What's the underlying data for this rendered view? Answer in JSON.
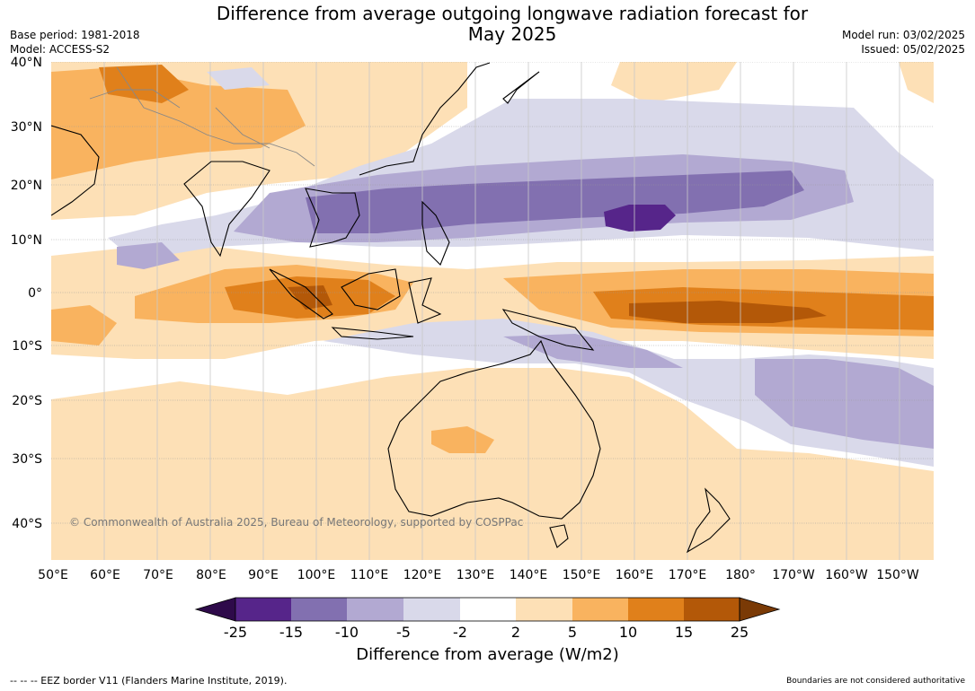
{
  "header": {
    "title_line1": "Difference from average outgoing longwave radiation forecast for",
    "title_line2": "May 2025",
    "base_period": "Base period: 1981-2018",
    "model": "Model: ACCESS-S2",
    "model_run": "Model run: 03/02/2025",
    "issued": "Issued: 05/02/2025"
  },
  "map": {
    "lat_labels": [
      "40°N",
      "30°N",
      "20°N",
      "10°N",
      "0°",
      "10°S",
      "20°S",
      "30°S",
      "40°S"
    ],
    "lon_labels": [
      "50°E",
      "60°E",
      "70°E",
      "80°E",
      "90°E",
      "100°E",
      "110°E",
      "120°E",
      "130°E",
      "140°E",
      "150°E",
      "160°E",
      "170°E",
      "180°",
      "170°W",
      "160°W",
      "150°W"
    ],
    "copyright": "© Commonwealth of Australia 2025, Bureau of Meteorology, supported by COSPPac"
  },
  "colorbar": {
    "ticks": [
      "-25",
      "-15",
      "-10",
      "-5",
      "-2",
      "2",
      "5",
      "10",
      "15",
      "25"
    ],
    "colors": [
      "#2e0a4a",
      "#56258a",
      "#8270b0",
      "#b2a9d2",
      "#d9d9ea",
      "#ffffff",
      "#fde0b6",
      "#f9b35f",
      "#e0801b",
      "#b35808",
      "#7a3a06"
    ],
    "label": "Difference from average (W/m2)"
  },
  "footer": {
    "eez_note": "--  --  -- EEZ border V11 (Flanders Marine Institute, 2019).",
    "boundaries_note": "Boundaries are not considered authoritative"
  }
}
